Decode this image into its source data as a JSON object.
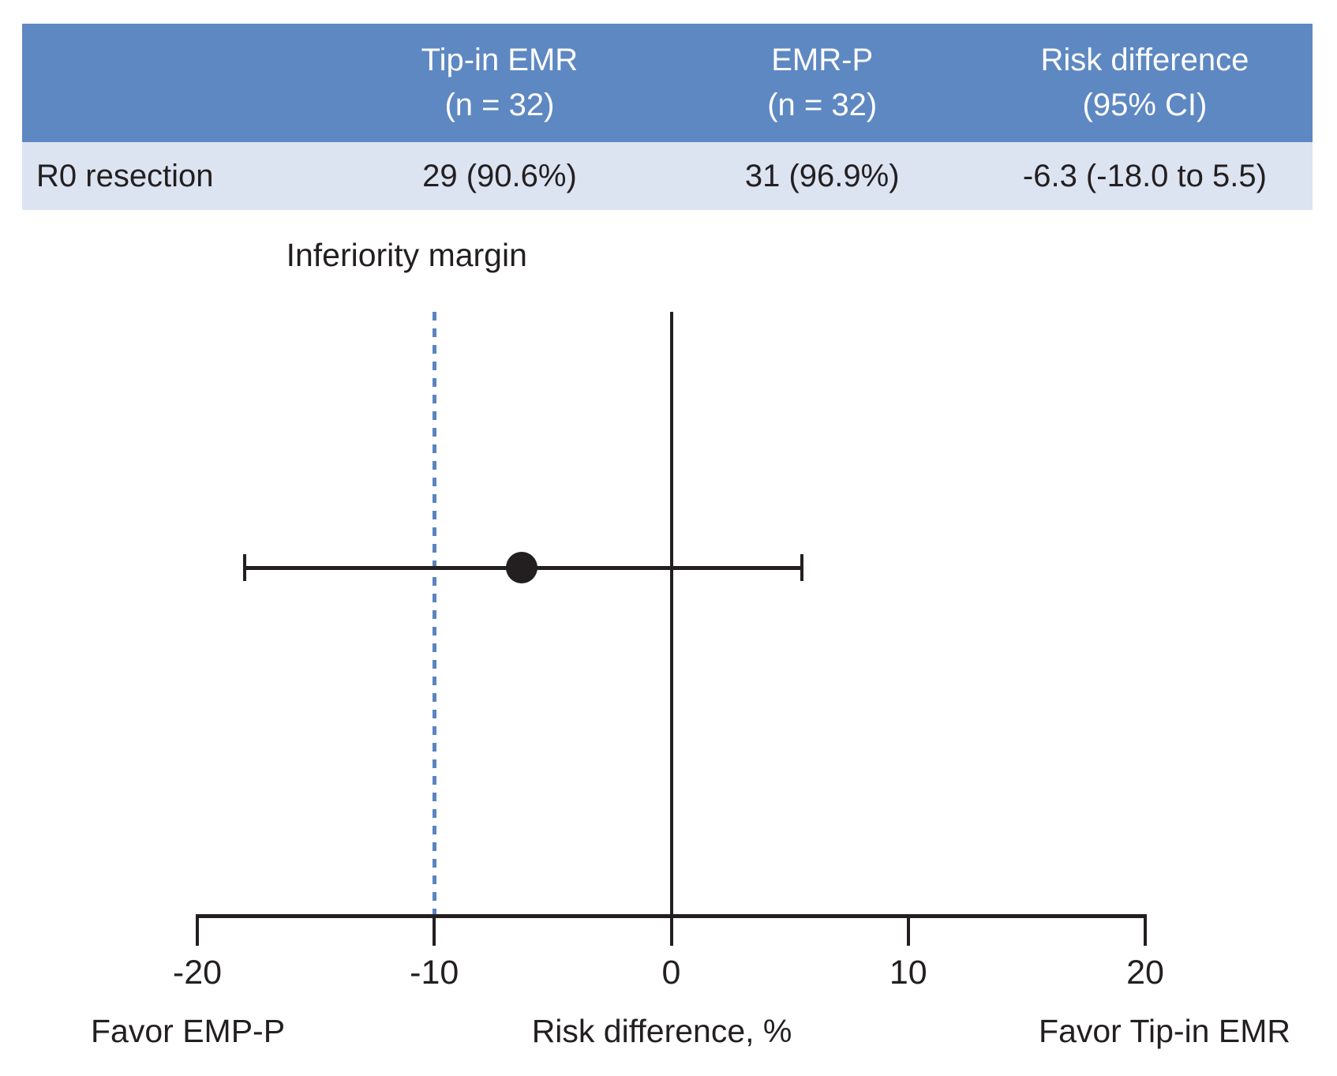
{
  "table": {
    "columns": [
      {
        "title": "",
        "subtitle": ""
      },
      {
        "title": "Tip-in EMR",
        "subtitle": "(n = 32)"
      },
      {
        "title": "EMR-P",
        "subtitle": "(n = 32)"
      },
      {
        "title": "Risk difference",
        "subtitle": "(95% CI)"
      }
    ],
    "rows": [
      {
        "label": "R0 resection",
        "values": [
          "29 (90.6%)",
          "31 (96.9%)",
          "-6.3 (-18.0 to 5.5)"
        ]
      }
    ]
  },
  "chart_data": {
    "type": "scatter",
    "subtype": "forest-plot",
    "xlabel": "Risk difference, %",
    "xlim": [
      -20,
      20
    ],
    "x_ticks": [
      -20,
      -10,
      0,
      10,
      20
    ],
    "grid": false,
    "reference_line_x": 0,
    "inferiority_margin_x": -10,
    "series": [
      {
        "name": "R0 resection",
        "estimate": -6.3,
        "ci_low": -18.0,
        "ci_high": 5.5
      }
    ],
    "annotations": {
      "inferiority_label": "Inferiority margin",
      "favor_left": "Favor EMP-P",
      "favor_right": "Favor Tip-in EMR"
    }
  },
  "colors": {
    "header_bg": "#5e88c2",
    "row_bg": "#dce3f1",
    "margin_line": "#5b84c0",
    "ink": "#231f20"
  }
}
